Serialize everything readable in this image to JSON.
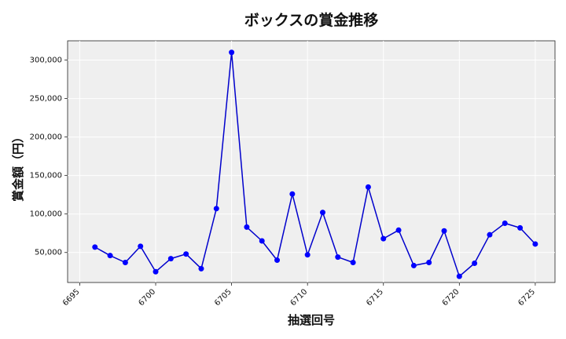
{
  "chart_data": {
    "type": "line",
    "title": "ボックスの賞金推移",
    "xlabel": "抽選回号",
    "ylabel": "賞金額（円）",
    "xlim": [
      6694.2,
      6726.3
    ],
    "ylim": [
      11000,
      325000
    ],
    "x_ticks": [
      6695,
      6700,
      6705,
      6710,
      6715,
      6720,
      6725
    ],
    "y_ticks": [
      50000,
      100000,
      150000,
      200000,
      250000,
      300000
    ],
    "y_tick_labels": [
      "50,000",
      "100,000",
      "150,000",
      "200,000",
      "250,000",
      "300,000"
    ],
    "grid": true,
    "series": [
      {
        "color": "#0000cc",
        "marker_color": "#0000ff",
        "x": [
          6696,
          6697,
          6698,
          6699,
          6700,
          6701,
          6702,
          6703,
          6704,
          6705,
          6706,
          6707,
          6708,
          6709,
          6710,
          6711,
          6712,
          6713,
          6714,
          6715,
          6716,
          6717,
          6718,
          6719,
          6720,
          6721,
          6722,
          6723,
          6724,
          6725
        ],
        "y": [
          57000,
          46000,
          37000,
          58000,
          25000,
          42000,
          48000,
          29000,
          107000,
          310000,
          83000,
          65000,
          40000,
          126000,
          47000,
          102000,
          44000,
          37000,
          135000,
          68000,
          79000,
          33000,
          37000,
          78000,
          19000,
          36000,
          73000,
          88000,
          82000,
          61000
        ]
      }
    ]
  }
}
